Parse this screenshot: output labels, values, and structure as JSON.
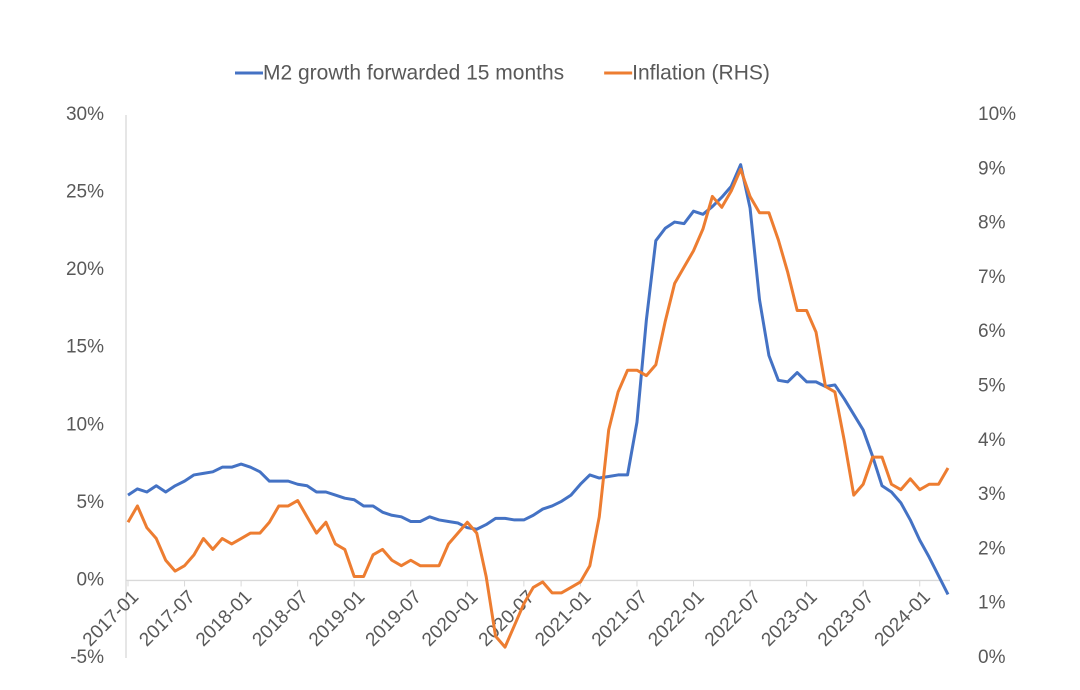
{
  "chart_data": {
    "type": "line",
    "categories": [
      "2017-01",
      null,
      null,
      null,
      null,
      null,
      "2017-07",
      null,
      null,
      null,
      null,
      null,
      "2018-01",
      null,
      null,
      null,
      null,
      null,
      "2018-07",
      null,
      null,
      null,
      null,
      null,
      "2019-01",
      null,
      null,
      null,
      null,
      null,
      "2019-07",
      null,
      null,
      null,
      null,
      null,
      "2020-01",
      null,
      null,
      null,
      null,
      null,
      "2020-07",
      null,
      null,
      null,
      null,
      null,
      "2021-01",
      null,
      null,
      null,
      null,
      null,
      "2021-07",
      null,
      null,
      null,
      null,
      null,
      "2022-01",
      null,
      null,
      null,
      null,
      null,
      "2022-07",
      null,
      null,
      null,
      null,
      null,
      "2023-01",
      null,
      null,
      null,
      null,
      null,
      "2023-07",
      null,
      null,
      null,
      null,
      null,
      "2024-01",
      null,
      null,
      null
    ],
    "series": [
      {
        "name": "M2 growth forwarded 15 months",
        "color": "#4472c4",
        "values": [
          5.5,
          5.9,
          5.7,
          6.1,
          5.7,
          6.1,
          6.4,
          6.8,
          6.9,
          7.0,
          7.3,
          7.3,
          7.5,
          7.3,
          7.0,
          6.4,
          6.4,
          6.4,
          6.2,
          6.1,
          5.7,
          5.7,
          5.5,
          5.3,
          5.2,
          4.8,
          4.8,
          4.4,
          4.2,
          4.1,
          3.8,
          3.8,
          4.1,
          3.9,
          3.8,
          3.7,
          3.4,
          3.3,
          3.6,
          4.0,
          4.0,
          3.9,
          3.9,
          4.2,
          4.6,
          4.8,
          5.1,
          5.5,
          6.2,
          6.8,
          6.6,
          6.7,
          6.8,
          6.8,
          10.2,
          16.8,
          21.9,
          22.7,
          23.1,
          23.0,
          23.8,
          23.6,
          24.1,
          24.7,
          25.4,
          26.8,
          24.0,
          18.1,
          14.5,
          12.9,
          12.8,
          13.4,
          12.8,
          12.8,
          12.5,
          12.6,
          11.7,
          10.7,
          9.7,
          8.0,
          6.1,
          5.7,
          5.0,
          3.9,
          2.6,
          1.5,
          0.3,
          -0.9
        ]
      },
      {
        "name": "Inflation (RHS)",
        "color": "#ed7d31",
        "axis": "y2",
        "values": [
          2.5,
          2.8,
          2.4,
          2.2,
          1.8,
          1.6,
          1.7,
          1.9,
          2.2,
          2.0,
          2.2,
          2.1,
          2.2,
          2.3,
          2.3,
          2.5,
          2.8,
          2.8,
          2.9,
          2.6,
          2.3,
          2.5,
          2.1,
          2.0,
          1.5,
          1.5,
          1.9,
          2.0,
          1.8,
          1.7,
          1.8,
          1.7,
          1.7,
          1.7,
          2.1,
          2.3,
          2.5,
          2.3,
          1.5,
          0.4,
          0.2,
          0.6,
          1.0,
          1.3,
          1.4,
          1.2,
          1.2,
          1.3,
          1.4,
          1.7,
          2.6,
          4.2,
          4.9,
          5.3,
          5.3,
          5.2,
          5.4,
          6.2,
          6.9,
          7.2,
          7.5,
          7.9,
          8.5,
          8.3,
          8.6,
          9.0,
          8.5,
          8.2,
          8.2,
          7.7,
          7.1,
          6.4,
          6.4,
          6.0,
          5.0,
          4.9,
          4.0,
          3.0,
          3.2,
          3.7,
          3.7,
          3.2,
          3.1,
          3.3,
          3.1,
          3.2,
          3.2,
          3.5
        ]
      }
    ],
    "ylim": [
      -5,
      30
    ],
    "yticks": [
      {
        "value": -5,
        "label": "-5%"
      },
      {
        "value": 0,
        "label": "0%"
      },
      {
        "value": 5,
        "label": "5%"
      },
      {
        "value": 10,
        "label": "10%"
      },
      {
        "value": 15,
        "label": "15%"
      },
      {
        "value": 20,
        "label": "20%"
      },
      {
        "value": 25,
        "label": "25%"
      },
      {
        "value": 30,
        "label": "30%"
      }
    ],
    "y2lim": [
      0,
      10
    ],
    "y2ticks": [
      {
        "value": 0,
        "label": "0%"
      },
      {
        "value": 1,
        "label": "1%"
      },
      {
        "value": 2,
        "label": "2%"
      },
      {
        "value": 3,
        "label": "3%"
      },
      {
        "value": 4,
        "label": "4%"
      },
      {
        "value": 5,
        "label": "5%"
      },
      {
        "value": 6,
        "label": "6%"
      },
      {
        "value": 7,
        "label": "7%"
      },
      {
        "value": 8,
        "label": "8%"
      },
      {
        "value": 9,
        "label": "9%"
      },
      {
        "value": 10,
        "label": "10%"
      }
    ],
    "grid": false,
    "legend": "top"
  }
}
